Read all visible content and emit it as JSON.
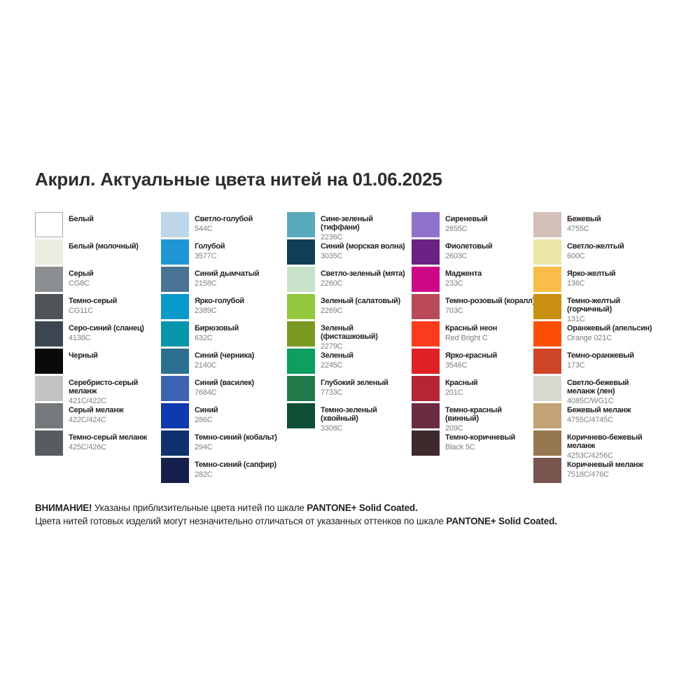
{
  "title": "Акрил. Актуальные цвета нитей на 01.06.2025",
  "palette_scale": "PANTONE+ Solid Coated",
  "columns": [
    {
      "items": [
        {
          "name": "Белый",
          "code": "",
          "color": "#ffffff",
          "border": true
        },
        {
          "name": "Белый (молочный)",
          "code": "",
          "color": "#ecede0",
          "border": false
        },
        {
          "name": "Серый",
          "code": "CG8C",
          "color": "#8c8f91",
          "border": false
        },
        {
          "name": "Темно-серый",
          "code": "CG11C",
          "color": "#505356",
          "border": false
        },
        {
          "name": "Серо-синий (сланец)",
          "code": "4138C",
          "color": "#3b4651",
          "border": false
        },
        {
          "name": "Черный",
          "code": "",
          "color": "#0a0a0a",
          "border": false
        },
        {
          "name": "Серебристо-серый меланж",
          "code": "421C/422C",
          "color": "#c1c4c3",
          "border": false
        },
        {
          "name": "Серый меланж",
          "code": "422C/424C",
          "color": "#75797b",
          "border": false
        },
        {
          "name": "Темно-серый меланж",
          "code": "425C/426C",
          "color": "#585c5e",
          "border": false
        }
      ]
    },
    {
      "items": [
        {
          "name": "Светло-голубой",
          "code": "544C",
          "color": "#bdd6ea",
          "border": false
        },
        {
          "name": "Голубой",
          "code": "3577C",
          "color": "#1f97d4",
          "border": false
        },
        {
          "name": "Синий дымчатый",
          "code": "2158C",
          "color": "#4a7295",
          "border": false
        },
        {
          "name": "Ярко-голубой",
          "code": "2389C",
          "color": "#0999cb",
          "border": false
        },
        {
          "name": "Бирюзовый",
          "code": "632C",
          "color": "#0795ab",
          "border": false
        },
        {
          "name": "Синий (черника)",
          "code": "2140C",
          "color": "#2d6f8f",
          "border": false
        },
        {
          "name": "Синий (василек)",
          "code": "7684C",
          "color": "#3c64b0",
          "border": false
        },
        {
          "name": "Синий",
          "code": "286C",
          "color": "#0f39ae",
          "border": false
        },
        {
          "name": "Темно-синий (кобальт)",
          "code": "294C",
          "color": "#11316e",
          "border": false
        },
        {
          "name": "Темно-синий (сапфир)",
          "code": "282C",
          "color": "#15204a",
          "border": false
        }
      ]
    },
    {
      "items": [
        {
          "name": "Сине-зеленый (тиффани)",
          "code": "2236C",
          "color": "#57abbd",
          "border": false
        },
        {
          "name": "Синий (морская волна)",
          "code": "3035C",
          "color": "#123e56",
          "border": false
        },
        {
          "name": "Светло-зеленый (мята)",
          "code": "2260C",
          "color": "#c8e2c9",
          "border": false
        },
        {
          "name": "Зеленый (салатовый)",
          "code": "2269C",
          "color": "#94c83f",
          "border": false
        },
        {
          "name": "Зеленый (фисташковый)",
          "code": "2279C",
          "color": "#7a9a23",
          "border": false
        },
        {
          "name": "Зеленый",
          "code": "2245C",
          "color": "#0d9e60",
          "border": false
        },
        {
          "name": "Глубокий зеленый",
          "code": "7733C",
          "color": "#217a49",
          "border": false
        },
        {
          "name": "Темно-зеленый (хвойный)",
          "code": "3308C",
          "color": "#0d4e35",
          "border": false
        }
      ]
    },
    {
      "items": [
        {
          "name": "Сиреневый",
          "code": "2655C",
          "color": "#8f72cc",
          "border": false
        },
        {
          "name": "Фиолетовый",
          "code": "2603C",
          "color": "#6a2286",
          "border": false
        },
        {
          "name": "Маджента",
          "code": "233C",
          "color": "#cc0788",
          "border": false
        },
        {
          "name": "Темно-розовый (коралл)",
          "code": "703C",
          "color": "#b94b58",
          "border": false
        },
        {
          "name": "Красный неон",
          "code": "Red Bright C",
          "color": "#fa3c1c",
          "border": false
        },
        {
          "name": "Ярко-красный",
          "code": "3546C",
          "color": "#df2126",
          "border": false
        },
        {
          "name": "Красный",
          "code": "201C",
          "color": "#b52534",
          "border": false
        },
        {
          "name": "Темно-красный (винный)",
          "code": "209C",
          "color": "#6b2b40",
          "border": false
        },
        {
          "name": "Темно-коричневый",
          "code": "Black 5C",
          "color": "#3d2a2d",
          "border": false
        }
      ]
    },
    {
      "items": [
        {
          "name": "Бежевый",
          "code": "4755C",
          "color": "#d3c0b8",
          "border": false
        },
        {
          "name": "Светло-желтый",
          "code": "600C",
          "color": "#ebe8a8",
          "border": false
        },
        {
          "name": "Ярко-желтый",
          "code": "136C",
          "color": "#f9bd4a",
          "border": false
        },
        {
          "name": "Темно-желтый (горчичный)",
          "code": "131C",
          "color": "#c98f10",
          "border": false
        },
        {
          "name": "Оранжевый (апельсин)",
          "code": "Orange 021C",
          "color": "#fc4f06",
          "border": false
        },
        {
          "name": "Темно-оранжевый",
          "code": "173C",
          "color": "#cd4526",
          "border": false
        },
        {
          "name": "Светло-бежевый меланж (лен)",
          "code": "4085C/WG1C",
          "color": "#d8d7d0",
          "border": false
        },
        {
          "name": "Бежевый меланж",
          "code": "4755C/4745C",
          "color": "#c2a476",
          "border": false
        },
        {
          "name": "Коричнево-бежевый меланж",
          "code": "4253C/4256C",
          "color": "#94764f",
          "border": false
        },
        {
          "name": "Коричневый меланж",
          "code": "7518C/476C",
          "color": "#77544d",
          "border": false
        }
      ]
    }
  ],
  "note": {
    "line1": [
      {
        "text": "ВНИМАНИЕ!",
        "bold": true
      },
      {
        "text": " Указаны приблизительные цвета нитей по шкале ",
        "bold": false
      },
      {
        "text": "PANTONE+ Solid Coated.",
        "bold": true
      }
    ],
    "line2": [
      {
        "text": "Цвета нитей готовых изделий могут незначительно отличаться от указанных оттенков по шкале ",
        "bold": false
      },
      {
        "text": "PANTONE+ Solid Coated.",
        "bold": true
      }
    ]
  }
}
